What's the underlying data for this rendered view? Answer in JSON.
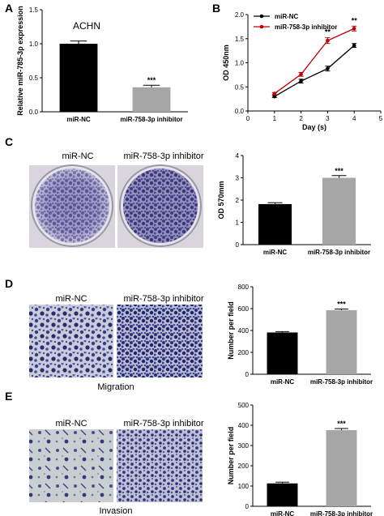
{
  "panels": {
    "A": {
      "letter": "A",
      "subtitle": "ACHN",
      "chart_data": {
        "type": "bar",
        "ylabel": "Relative miR-785-3p expression",
        "xlabel": "",
        "ylim": [
          0,
          1.5
        ],
        "yticks": [
          "0.0",
          "0.5",
          "1.0",
          "1.5"
        ],
        "categories": [
          "miR-NC",
          "miR-758-3p inhibitor"
        ],
        "values": [
          1.0,
          0.36
        ],
        "errors": [
          0.04,
          0.03
        ],
        "colors": [
          "#000000",
          "#a6a6a6"
        ],
        "significance": [
          "",
          "***"
        ]
      }
    },
    "B": {
      "letter": "B",
      "chart_data": {
        "type": "line",
        "ylabel": "OD 450nm",
        "xlabel": "Day (s)",
        "xlim": [
          0,
          5
        ],
        "ylim": [
          0,
          2.0
        ],
        "xticks": [
          "0",
          "1",
          "2",
          "3",
          "4",
          "5"
        ],
        "yticks": [
          "0.0",
          "0.5",
          "1.0",
          "1.5",
          "2.0"
        ],
        "x": [
          1,
          2,
          3,
          4
        ],
        "legend_position": "top-left",
        "series": [
          {
            "name": "miR-NC",
            "color": "#000000",
            "values": [
              0.3,
              0.62,
              0.88,
              1.36
            ],
            "errors": [
              0.02,
              0.04,
              0.05,
              0.04
            ]
          },
          {
            "name": "miR-758-3p inhibitor",
            "color": "#c00000",
            "values": [
              0.36,
              0.76,
              1.46,
              1.71
            ],
            "errors": [
              0.02,
              0.04,
              0.06,
              0.05
            ]
          }
        ],
        "significance": [
          {
            "x": 3,
            "label": "**"
          },
          {
            "x": 4,
            "label": "**"
          }
        ]
      }
    },
    "C": {
      "letter": "C",
      "image_labels": [
        "miR-NC",
        "miR-758-3p inhibitor"
      ],
      "chart_data": {
        "type": "bar",
        "ylabel": "OD 570mm",
        "xlabel": "",
        "ylim": [
          0,
          4
        ],
        "yticks": [
          "0",
          "1",
          "2",
          "3",
          "4"
        ],
        "categories": [
          "miR-NC",
          "miR-758-3p inhibitor"
        ],
        "values": [
          1.82,
          3.0
        ],
        "errors": [
          0.06,
          0.1
        ],
        "colors": [
          "#000000",
          "#a6a6a6"
        ],
        "significance": [
          "",
          "***"
        ]
      }
    },
    "D": {
      "letter": "D",
      "image_labels": [
        "miR-NC",
        "miR-758-3p inhibitor"
      ],
      "caption": "Migration",
      "chart_data": {
        "type": "bar",
        "ylabel": "Number per field",
        "xlabel": "",
        "ylim": [
          0,
          800
        ],
        "yticks": [
          "0",
          "200",
          "400",
          "600",
          "800"
        ],
        "categories": [
          "miR-NC",
          "miR-758-3p inhibitor"
        ],
        "values": [
          382,
          586
        ],
        "errors": [
          8,
          10
        ],
        "colors": [
          "#000000",
          "#a6a6a6"
        ],
        "significance": [
          "",
          "***"
        ]
      }
    },
    "E": {
      "letter": "E",
      "image_labels": [
        "miR-NC",
        "miR-758-3p inhibitor"
      ],
      "caption": "Invasion",
      "chart_data": {
        "type": "bar",
        "ylabel": "Number per field",
        "xlabel": "",
        "ylim": [
          0,
          500
        ],
        "yticks": [
          "0",
          "100",
          "200",
          "300",
          "400",
          "500"
        ],
        "categories": [
          "miR-NC",
          "miR-758-3p inhibitor"
        ],
        "values": [
          113,
          376
        ],
        "errors": [
          6,
          8
        ],
        "colors": [
          "#000000",
          "#a6a6a6"
        ],
        "significance": [
          "",
          "***"
        ]
      }
    }
  }
}
